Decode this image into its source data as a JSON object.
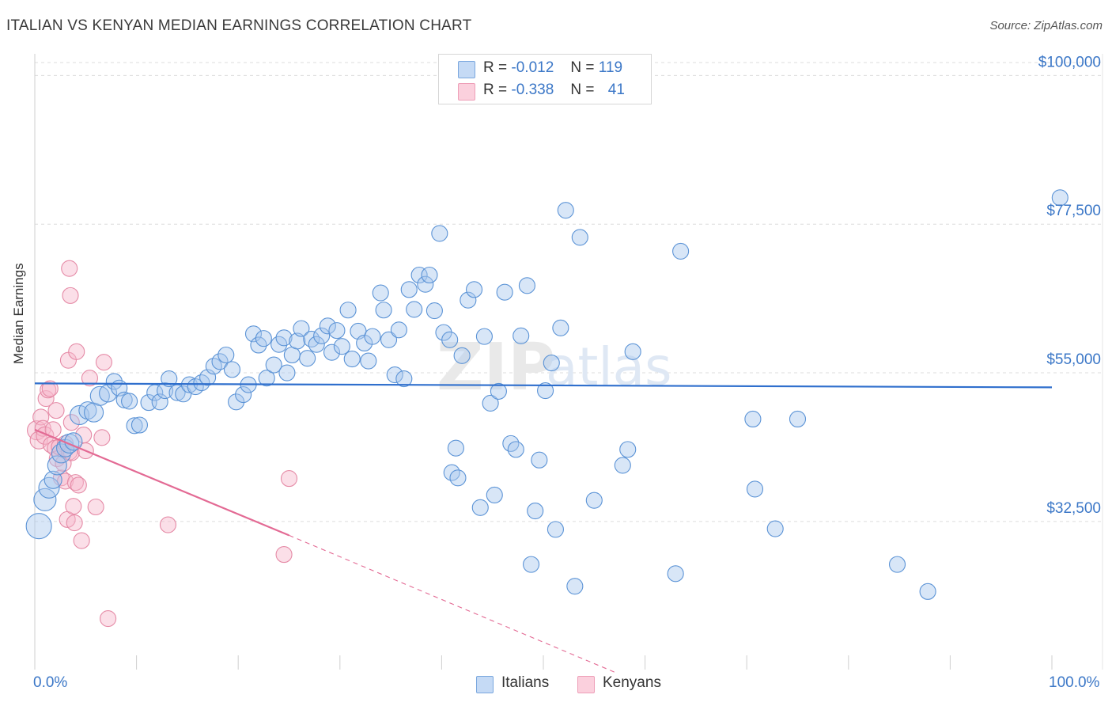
{
  "title": "ITALIAN VS KENYAN MEDIAN EARNINGS CORRELATION CHART",
  "source": "Source: ZipAtlas.com",
  "colors": {
    "italians_fill": "#a9c8ee",
    "italians_stroke": "#5b93d6",
    "italians_line": "#2f6fcd",
    "kenyans_fill": "#f7b8cb",
    "kenyans_stroke": "#e58aa6",
    "kenyans_line": "#e36a94",
    "accent_text": "#3b77c7",
    "grid": "#dcdcdc"
  },
  "legend": {
    "rows": [
      {
        "r_label": "R =",
        "r_value": "-0.012",
        "n_label": "N =",
        "n_value": "119"
      },
      {
        "r_label": "R =",
        "r_value": "-0.338",
        "n_label": "N =",
        "n_value": "41"
      }
    ]
  },
  "bottom_legend": {
    "italians": "Italians",
    "kenyans": "Kenyans"
  },
  "watermark": {
    "zip": "ZIP",
    "atlas": "atlas"
  },
  "chart_data": {
    "type": "scatter",
    "title": "ITALIAN VS KENYAN MEDIAN EARNINGS CORRELATION CHART",
    "xlabel": "",
    "ylabel": "Median Earnings",
    "xlim": [
      0,
      100
    ],
    "ylim": [
      12000,
      104000
    ],
    "x_tick_labels": [
      "0.0%",
      "100.0%"
    ],
    "y_ticks": [
      32500,
      55000,
      77500,
      100000
    ],
    "y_tick_labels": [
      "$32,500",
      "$55,000",
      "$77,500",
      "$100,000"
    ],
    "grid": true,
    "series": [
      {
        "name": "Italians",
        "r": -0.012,
        "n": 119,
        "trend": {
          "x0": 0,
          "y0": 53400,
          "x1": 100,
          "y1": 52800
        },
        "points": [
          [
            0.4,
            31800,
            16
          ],
          [
            1.0,
            35800,
            14
          ],
          [
            1.4,
            37600,
            13
          ],
          [
            1.8,
            38800,
            11
          ],
          [
            2.2,
            41000,
            12
          ],
          [
            2.6,
            42800,
            12
          ],
          [
            3.0,
            43600,
            11
          ],
          [
            3.4,
            44300,
            12
          ],
          [
            3.8,
            44600,
            11
          ],
          [
            4.4,
            48600,
            12
          ],
          [
            5.2,
            49300,
            11
          ],
          [
            5.8,
            49000,
            12
          ],
          [
            6.4,
            51500,
            12
          ],
          [
            7.2,
            51900,
            11
          ],
          [
            7.8,
            53700,
            10
          ],
          [
            8.3,
            52700,
            10
          ],
          [
            8.8,
            50900,
            10
          ],
          [
            9.3,
            50700,
            10
          ],
          [
            9.8,
            47000,
            10
          ],
          [
            10.3,
            47100,
            10
          ],
          [
            11.2,
            50500,
            10
          ],
          [
            11.8,
            52000,
            10
          ],
          [
            12.3,
            50600,
            10
          ],
          [
            12.8,
            52300,
            10
          ],
          [
            13.2,
            54100,
            10
          ],
          [
            14.0,
            52000,
            10
          ],
          [
            14.6,
            51800,
            10
          ],
          [
            15.2,
            53200,
            10
          ],
          [
            15.8,
            52900,
            10
          ],
          [
            16.4,
            53500,
            10
          ],
          [
            17.0,
            54300,
            10
          ],
          [
            17.6,
            56000,
            10
          ],
          [
            18.2,
            56700,
            10
          ],
          [
            18.8,
            57700,
            10
          ],
          [
            19.4,
            55500,
            10
          ],
          [
            19.8,
            50600,
            10
          ],
          [
            20.5,
            51700,
            10
          ],
          [
            21.0,
            53200,
            10
          ],
          [
            21.5,
            60900,
            10
          ],
          [
            22.0,
            59200,
            10
          ],
          [
            22.5,
            60200,
            10
          ],
          [
            22.8,
            54200,
            10
          ],
          [
            23.5,
            56200,
            10
          ],
          [
            24.0,
            59300,
            10
          ],
          [
            24.5,
            60300,
            10
          ],
          [
            24.8,
            55000,
            10
          ],
          [
            25.3,
            57700,
            10
          ],
          [
            25.8,
            59800,
            10
          ],
          [
            26.2,
            61700,
            10
          ],
          [
            26.8,
            57200,
            10
          ],
          [
            27.2,
            60100,
            10
          ],
          [
            27.7,
            59300,
            10
          ],
          [
            28.2,
            60600,
            10
          ],
          [
            28.8,
            62100,
            10
          ],
          [
            29.2,
            58100,
            10
          ],
          [
            29.7,
            61400,
            10
          ],
          [
            30.2,
            59000,
            10
          ],
          [
            30.8,
            64500,
            10
          ],
          [
            31.2,
            57100,
            10
          ],
          [
            31.8,
            61300,
            10
          ],
          [
            32.4,
            59500,
            10
          ],
          [
            32.8,
            56800,
            10
          ],
          [
            33.2,
            60500,
            10
          ],
          [
            34.0,
            67100,
            10
          ],
          [
            34.3,
            64500,
            10
          ],
          [
            34.8,
            60000,
            10
          ],
          [
            35.4,
            54700,
            10
          ],
          [
            35.8,
            61500,
            10
          ],
          [
            36.3,
            54100,
            10
          ],
          [
            36.8,
            67600,
            10
          ],
          [
            37.3,
            64600,
            10
          ],
          [
            37.8,
            69800,
            10
          ],
          [
            38.4,
            68400,
            10
          ],
          [
            38.8,
            69800,
            10
          ],
          [
            39.3,
            64400,
            10
          ],
          [
            39.8,
            76100,
            10
          ],
          [
            40.2,
            61100,
            10
          ],
          [
            40.8,
            60000,
            10
          ],
          [
            41.4,
            43600,
            10
          ],
          [
            41.0,
            39900,
            10
          ],
          [
            41.6,
            39100,
            10
          ],
          [
            42.0,
            57600,
            10
          ],
          [
            42.6,
            66000,
            10
          ],
          [
            43.2,
            67600,
            10
          ],
          [
            43.8,
            34600,
            10
          ],
          [
            44.2,
            60500,
            10
          ],
          [
            44.8,
            50400,
            10
          ],
          [
            45.2,
            36500,
            10
          ],
          [
            45.6,
            52200,
            10
          ],
          [
            46.2,
            67200,
            10
          ],
          [
            46.8,
            44300,
            10
          ],
          [
            47.3,
            43400,
            10
          ],
          [
            47.8,
            60600,
            10
          ],
          [
            48.4,
            68200,
            10
          ],
          [
            48.8,
            26000,
            10
          ],
          [
            49.2,
            34100,
            10
          ],
          [
            49.6,
            41800,
            10
          ],
          [
            50.2,
            52300,
            10
          ],
          [
            50.8,
            56500,
            10
          ],
          [
            51.2,
            31300,
            10
          ],
          [
            51.7,
            61800,
            10
          ],
          [
            52.2,
            79600,
            10
          ],
          [
            53.1,
            22700,
            10
          ],
          [
            53.6,
            75500,
            10
          ],
          [
            55.0,
            35700,
            10
          ],
          [
            57.8,
            41000,
            10
          ],
          [
            58.3,
            43400,
            10
          ],
          [
            58.8,
            58200,
            10
          ],
          [
            63.0,
            24600,
            10
          ],
          [
            63.5,
            73400,
            10
          ],
          [
            70.8,
            37400,
            10
          ],
          [
            70.6,
            48000,
            10
          ],
          [
            72.8,
            31400,
            10
          ],
          [
            75.0,
            48000,
            10
          ],
          [
            84.8,
            26000,
            10
          ],
          [
            87.8,
            21900,
            10
          ],
          [
            100.8,
            81500,
            10
          ]
        ]
      },
      {
        "name": "Kenyans",
        "r": -0.338,
        "n": 41,
        "trend": {
          "x0": 0,
          "y0": 46400,
          "x1": 25,
          "y1": 30400,
          "dash_x1": 57,
          "dash_y1": 9700
        },
        "points": [
          [
            0.2,
            46300,
            12
          ],
          [
            0.4,
            44800,
            11
          ],
          [
            0.6,
            48300,
            10
          ],
          [
            0.8,
            46600,
            10
          ],
          [
            1.0,
            45500,
            11
          ],
          [
            1.1,
            51100,
            10
          ],
          [
            1.3,
            52400,
            10
          ],
          [
            1.5,
            52600,
            10
          ],
          [
            1.6,
            44100,
            10
          ],
          [
            1.8,
            46400,
            10
          ],
          [
            2.0,
            43600,
            10
          ],
          [
            2.1,
            49300,
            10
          ],
          [
            2.2,
            42000,
            10
          ],
          [
            2.4,
            43800,
            10
          ],
          [
            2.6,
            39100,
            10
          ],
          [
            2.8,
            41300,
            10
          ],
          [
            3.0,
            44300,
            10
          ],
          [
            3.2,
            32800,
            10
          ],
          [
            3.4,
            43000,
            10
          ],
          [
            3.6,
            42900,
            10
          ],
          [
            3.0,
            38600,
            10
          ],
          [
            3.3,
            56900,
            10
          ],
          [
            3.4,
            70800,
            10
          ],
          [
            3.5,
            66700,
            10
          ],
          [
            3.6,
            47500,
            10
          ],
          [
            3.8,
            34800,
            10
          ],
          [
            3.9,
            32300,
            10
          ],
          [
            4.0,
            38400,
            10
          ],
          [
            4.1,
            58200,
            10
          ],
          [
            4.3,
            38000,
            10
          ],
          [
            4.6,
            29600,
            10
          ],
          [
            4.8,
            45600,
            10
          ],
          [
            5.0,
            43200,
            10
          ],
          [
            5.4,
            54200,
            10
          ],
          [
            6.0,
            34700,
            10
          ],
          [
            6.6,
            45200,
            10
          ],
          [
            6.8,
            56600,
            10
          ],
          [
            7.2,
            17800,
            10
          ],
          [
            13.1,
            32000,
            10
          ],
          [
            24.5,
            27500,
            10
          ],
          [
            25.0,
            39000,
            10
          ]
        ]
      }
    ]
  }
}
